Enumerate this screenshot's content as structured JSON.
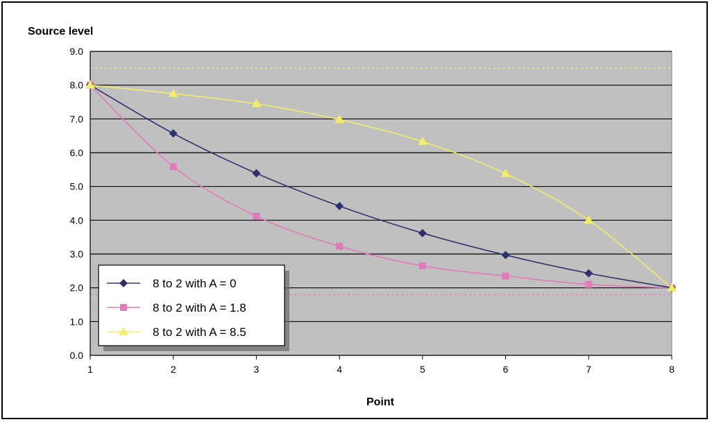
{
  "chart_data": {
    "type": "line",
    "ylabel": "Source level",
    "xlabel": "Point",
    "x": [
      1,
      2,
      3,
      4,
      5,
      6,
      7,
      8
    ],
    "xlim": [
      1,
      8
    ],
    "ylim": [
      0,
      9
    ],
    "yticks": [
      "0.0",
      "1.0",
      "2.0",
      "3.0",
      "4.0",
      "5.0",
      "6.0",
      "7.0",
      "8.0",
      "9.0"
    ],
    "xticks": [
      "1",
      "2",
      "3",
      "4",
      "5",
      "6",
      "7",
      "8"
    ],
    "grid": true,
    "legend_position": "bottom-left",
    "background_color": "#c0c0c0",
    "series": [
      {
        "name": "8 to 2 with A = 0",
        "color": "#2e2f6b",
        "marker": "diamond",
        "values": [
          8.0,
          6.57,
          5.39,
          4.42,
          3.62,
          2.97,
          2.43,
          2.0
        ]
      },
      {
        "name": "8 to 2 with A = 1.8",
        "color": "#e07ab8",
        "marker": "square",
        "values": [
          8.0,
          5.59,
          4.12,
          3.23,
          2.65,
          2.35,
          2.1,
          2.0
        ]
      },
      {
        "name": "8 to 2 with A = 8.5",
        "color": "#f2ec6b",
        "marker": "triangle",
        "values": [
          8.0,
          7.75,
          7.45,
          6.98,
          6.33,
          5.38,
          4.0,
          2.0
        ]
      }
    ],
    "reference_lines": [
      {
        "value": 8.5,
        "color": "#f2ec6b",
        "style": "dotted"
      },
      {
        "value": 1.8,
        "color": "#e07ab8",
        "style": "dotted"
      }
    ]
  }
}
